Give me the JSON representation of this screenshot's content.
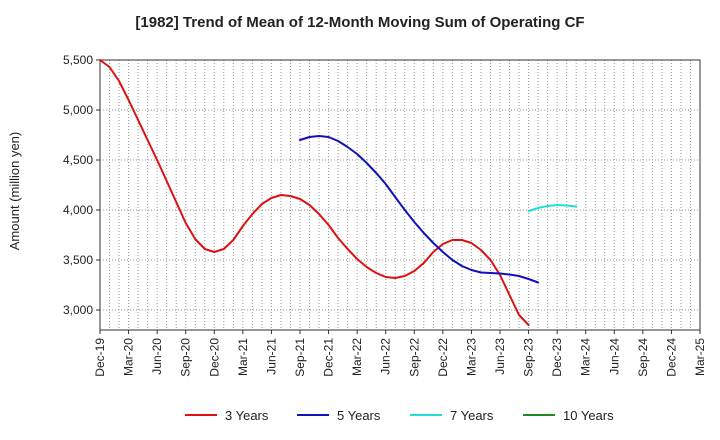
{
  "chart_data": {
    "type": "line",
    "title": "[1982]  Trend of Mean of 12-Month Moving Sum of Operating CF",
    "xlabel": "",
    "ylabel": "Amount (million yen)",
    "ylim": [
      2800,
      5500
    ],
    "yticks": [
      3000,
      3500,
      4000,
      4500,
      5000,
      5500
    ],
    "ytick_labels": [
      "3,000",
      "3,500",
      "4,000",
      "4,500",
      "5,000",
      "5,500"
    ],
    "x_start": "Dec-19",
    "x_end": "Mar-25",
    "x_ticks": [
      "Dec-19",
      "Mar-20",
      "Jun-20",
      "Sep-20",
      "Dec-20",
      "Mar-21",
      "Jun-21",
      "Sep-21",
      "Dec-21",
      "Mar-22",
      "Jun-22",
      "Sep-22",
      "Dec-22",
      "Mar-23",
      "Jun-23",
      "Sep-23",
      "Dec-23",
      "Mar-24",
      "Jun-24",
      "Sep-24",
      "Dec-24",
      "Mar-25"
    ],
    "grid": true,
    "legend_position": "bottom",
    "series": [
      {
        "name": "3 Years",
        "color": "#dd1111",
        "points": [
          [
            0,
            5500
          ],
          [
            1,
            5430
          ],
          [
            2,
            5290
          ],
          [
            3,
            5100
          ],
          [
            4,
            4900
          ],
          [
            5,
            4700
          ],
          [
            6,
            4500
          ],
          [
            7,
            4290
          ],
          [
            8,
            4080
          ],
          [
            9,
            3870
          ],
          [
            10,
            3710
          ],
          [
            11,
            3610
          ],
          [
            12,
            3580
          ],
          [
            13,
            3610
          ],
          [
            14,
            3700
          ],
          [
            15,
            3840
          ],
          [
            16,
            3960
          ],
          [
            17,
            4060
          ],
          [
            18,
            4120
          ],
          [
            19,
            4150
          ],
          [
            20,
            4140
          ],
          [
            21,
            4110
          ],
          [
            22,
            4050
          ],
          [
            23,
            3960
          ],
          [
            24,
            3850
          ],
          [
            25,
            3720
          ],
          [
            26,
            3610
          ],
          [
            27,
            3510
          ],
          [
            28,
            3430
          ],
          [
            29,
            3370
          ],
          [
            30,
            3330
          ],
          [
            31,
            3320
          ],
          [
            32,
            3340
          ],
          [
            33,
            3390
          ],
          [
            34,
            3470
          ],
          [
            35,
            3580
          ],
          [
            36,
            3660
          ],
          [
            37,
            3700
          ],
          [
            38,
            3700
          ],
          [
            39,
            3670
          ],
          [
            40,
            3600
          ],
          [
            41,
            3500
          ],
          [
            42,
            3350
          ],
          [
            43,
            3150
          ],
          [
            44,
            2950
          ],
          [
            45,
            2850
          ]
        ]
      },
      {
        "name": "5 Years",
        "color": "#1111bb",
        "points": [
          [
            21,
            4700
          ],
          [
            22,
            4730
          ],
          [
            23,
            4740
          ],
          [
            24,
            4730
          ],
          [
            25,
            4690
          ],
          [
            26,
            4630
          ],
          [
            27,
            4560
          ],
          [
            28,
            4470
          ],
          [
            29,
            4370
          ],
          [
            30,
            4260
          ],
          [
            31,
            4130
          ],
          [
            32,
            4000
          ],
          [
            33,
            3880
          ],
          [
            34,
            3770
          ],
          [
            35,
            3670
          ],
          [
            36,
            3580
          ],
          [
            37,
            3500
          ],
          [
            38,
            3440
          ],
          [
            39,
            3400
          ],
          [
            40,
            3375
          ],
          [
            41,
            3370
          ],
          [
            42,
            3365
          ],
          [
            43,
            3355
          ],
          [
            44,
            3340
          ],
          [
            45,
            3310
          ],
          [
            46,
            3275
          ]
        ]
      },
      {
        "name": "7 Years",
        "color": "#22dddd",
        "points": [
          [
            45,
            3990
          ],
          [
            46,
            4020
          ],
          [
            47,
            4040
          ],
          [
            48,
            4050
          ],
          [
            49,
            4045
          ],
          [
            50,
            4035
          ]
        ]
      },
      {
        "name": "10 Years",
        "color": "#228822",
        "points": []
      }
    ],
    "x_month_offset_note": "points are [months since Dec-19, value]"
  }
}
